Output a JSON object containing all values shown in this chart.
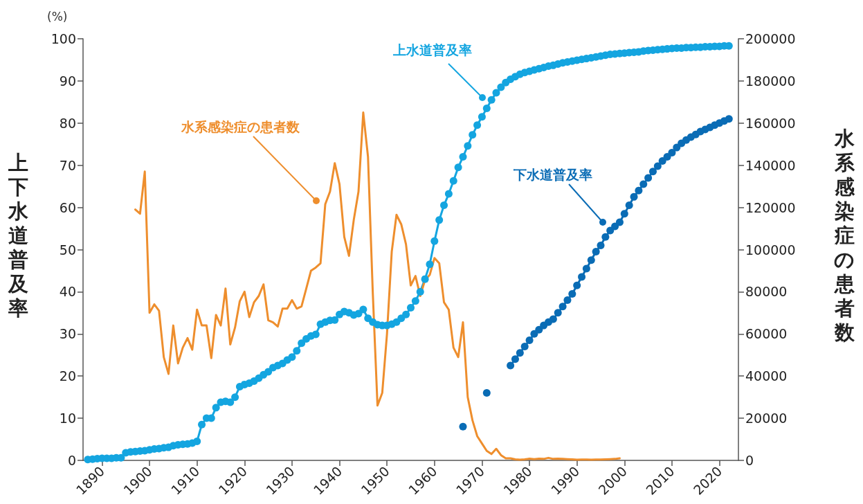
{
  "chart_data": {
    "type": "line",
    "ylabel": "上下水道普及率",
    "y2label": "水系感染症の患者数",
    "annotations": [
      "(%)"
    ],
    "xlim": [
      1886,
      2024
    ],
    "xticks": [
      1890,
      1900,
      1910,
      1920,
      1930,
      1940,
      1950,
      1960,
      1970,
      1980,
      1990,
      2000,
      2010,
      2020
    ],
    "ylim": [
      0,
      100
    ],
    "yticks": [
      0,
      10,
      20,
      30,
      40,
      50,
      60,
      70,
      80,
      90,
      100
    ],
    "y2lim": [
      0,
      200000
    ],
    "y2ticks": [
      0,
      20000,
      40000,
      60000,
      80000,
      100000,
      120000,
      140000,
      160000,
      180000,
      200000
    ],
    "legend": false,
    "grid": false,
    "series": [
      {
        "name": "上水道普及率",
        "color": "#14a5e0",
        "marker": "circle",
        "x": [
          1887,
          1888,
          1889,
          1890,
          1891,
          1892,
          1893,
          1894,
          1895,
          1896,
          1897,
          1898,
          1899,
          1900,
          1901,
          1902,
          1903,
          1904,
          1905,
          1906,
          1907,
          1908,
          1909,
          1910,
          1911,
          1912,
          1913,
          1914,
          1915,
          1916,
          1917,
          1918,
          1919,
          1920,
          1921,
          1922,
          1923,
          1924,
          1925,
          1926,
          1927,
          1928,
          1929,
          1930,
          1931,
          1932,
          1933,
          1934,
          1935,
          1936,
          1937,
          1938,
          1939,
          1940,
          1941,
          1942,
          1943,
          1944,
          1945,
          1946,
          1947,
          1948,
          1949,
          1950,
          1951,
          1952,
          1953,
          1954,
          1955,
          1956,
          1957,
          1958,
          1959,
          1960,
          1961,
          1962,
          1963,
          1964,
          1965,
          1966,
          1967,
          1968,
          1969,
          1970,
          1971,
          1972,
          1973,
          1974,
          1975,
          1976,
          1977,
          1978,
          1979,
          1980,
          1981,
          1982,
          1983,
          1984,
          1985,
          1986,
          1987,
          1988,
          1989,
          1990,
          1991,
          1992,
          1993,
          1994,
          1995,
          1996,
          1997,
          1998,
          1999,
          2000,
          2001,
          2002,
          2003,
          2004,
          2005,
          2006,
          2007,
          2008,
          2009,
          2010,
          2011,
          2012,
          2013,
          2014,
          2015,
          2016,
          2017,
          2018,
          2019,
          2020,
          2021,
          2022
        ],
        "values": [
          0.2,
          0.3,
          0.4,
          0.5,
          0.5,
          0.5,
          0.6,
          0.6,
          1.8,
          2.0,
          2.1,
          2.2,
          2.3,
          2.5,
          2.7,
          2.8,
          3.0,
          3.1,
          3.5,
          3.7,
          3.8,
          3.9,
          4.1,
          4.5,
          8.5,
          10,
          10,
          12.5,
          13.8,
          14,
          13.8,
          15,
          17.5,
          18,
          18.3,
          18.8,
          19.5,
          20.3,
          21,
          22,
          22.5,
          23,
          23.8,
          24.5,
          26,
          27.8,
          28.8,
          29.5,
          29.9,
          32.3,
          32.8,
          33.2,
          33.3,
          34.6,
          35.3,
          35,
          34.5,
          34.8,
          35.8,
          33.7,
          32.8,
          32.2,
          32,
          32,
          32.3,
          32.8,
          33.7,
          34.6,
          36.2,
          37.8,
          40,
          43,
          46.5,
          52,
          57,
          60.5,
          63.2,
          66.3,
          69.5,
          72,
          74.6,
          77.2,
          79.5,
          81.5,
          83.5,
          85.5,
          87.2,
          88.5,
          89.6,
          90.4,
          91.0,
          91.6,
          92.0,
          92.3,
          92.6,
          92.9,
          93.2,
          93.5,
          93.7,
          94.0,
          94.3,
          94.5,
          94.7,
          94.9,
          95.1,
          95.3,
          95.5,
          95.7,
          95.9,
          96.1,
          96.3,
          96.4,
          96.5,
          96.6,
          96.7,
          96.8,
          96.9,
          97.1,
          97.2,
          97.3,
          97.4,
          97.5,
          97.6,
          97.7,
          97.8,
          97.8,
          97.9,
          97.9,
          98.0,
          98.0,
          98.1,
          98.1,
          98.2,
          98.2,
          98.3,
          98.3
        ]
      },
      {
        "name": "下水道普及率",
        "color": "#0a6cb5",
        "marker": "circle",
        "x": [
          1966,
          1967,
          1968,
          1969,
          1970,
          1971,
          1972,
          1973,
          1974,
          1975,
          1976,
          1977,
          1978,
          1979,
          1980,
          1981,
          1982,
          1983,
          1984,
          1985,
          1986,
          1987,
          1988,
          1989,
          1990,
          1991,
          1992,
          1993,
          1994,
          1995,
          1996,
          1997,
          1998,
          1999,
          2000,
          2001,
          2002,
          2003,
          2004,
          2005,
          2006,
          2007,
          2008,
          2009,
          2010,
          2011,
          2012,
          2013,
          2014,
          2015,
          2016,
          2017,
          2018,
          2019,
          2020,
          2021,
          2022
        ],
        "values": [
          8,
          null,
          null,
          null,
          null,
          16,
          null,
          null,
          null,
          null,
          22.5,
          24,
          25.5,
          27,
          28.5,
          30,
          31,
          32,
          32.8,
          33.5,
          35,
          36.5,
          38,
          39.5,
          41.5,
          43.5,
          45.5,
          47.5,
          49.5,
          51,
          53,
          54.5,
          55.5,
          56.5,
          58.5,
          60.5,
          62.5,
          64,
          65.5,
          67,
          68.5,
          69.8,
          71,
          72,
          73,
          74.2,
          75.2,
          76,
          76.7,
          77.3,
          78,
          78.5,
          79,
          79.5,
          80,
          80.5,
          81
        ]
      },
      {
        "name": "水系感染症の患者数",
        "color": "#ee8e2d",
        "marker": "none",
        "axis": "y2",
        "x": [
          1897,
          1898,
          1899,
          1900,
          1901,
          1902,
          1903,
          1904,
          1905,
          1906,
          1907,
          1908,
          1909,
          1910,
          1911,
          1912,
          1913,
          1914,
          1915,
          1916,
          1917,
          1918,
          1919,
          1920,
          1921,
          1922,
          1923,
          1924,
          1925,
          1926,
          1927,
          1928,
          1929,
          1930,
          1931,
          1932,
          1933,
          1934,
          1935,
          1936,
          1937,
          1938,
          1939,
          1940,
          1941,
          1942,
          1943,
          1944,
          1945,
          1946,
          1947,
          1948,
          1949,
          1950,
          1951,
          1952,
          1953,
          1954,
          1955,
          1956,
          1957,
          1958,
          1959,
          1960,
          1961,
          1962,
          1963,
          1964,
          1965,
          1966,
          1967,
          1968,
          1969,
          1970,
          1971,
          1972,
          1973,
          1974,
          1975,
          1976,
          1977,
          1978,
          1979,
          1980,
          1981,
          1982,
          1983,
          1984,
          1985,
          1986,
          1987,
          1988,
          1989,
          1990,
          1991,
          1992,
          1993,
          1994,
          1995,
          1996,
          1997,
          1998,
          1999
        ],
        "values": [
          119000,
          117000,
          137000,
          70000,
          74000,
          71000,
          49000,
          41000,
          64000,
          46000,
          53500,
          58000,
          52500,
          71500,
          64000,
          64000,
          48500,
          69000,
          64000,
          81500,
          55000,
          63000,
          75500,
          80000,
          68000,
          75000,
          78000,
          83500,
          66500,
          65500,
          63500,
          72000,
          72000,
          76000,
          72000,
          73000,
          81500,
          90000,
          91500,
          93500,
          121500,
          127500,
          141000,
          131000,
          106000,
          97000,
          114000,
          127500,
          165000,
          144000,
          80000,
          26000,
          32000,
          60000,
          99000,
          116500,
          112000,
          102500,
          83000,
          87500,
          78000,
          85500,
          88000,
          96000,
          93500,
          75000,
          71500,
          53500,
          49000,
          65500,
          30000,
          19000,
          11500,
          8000,
          4500,
          3000,
          5500,
          2500,
          1000,
          1000,
          500,
          300,
          500,
          800,
          600,
          800,
          700,
          1200,
          700,
          800,
          700,
          600,
          500,
          300,
          400,
          400,
          300,
          400,
          400,
          500,
          600,
          700,
          1000
        ]
      }
    ]
  }
}
